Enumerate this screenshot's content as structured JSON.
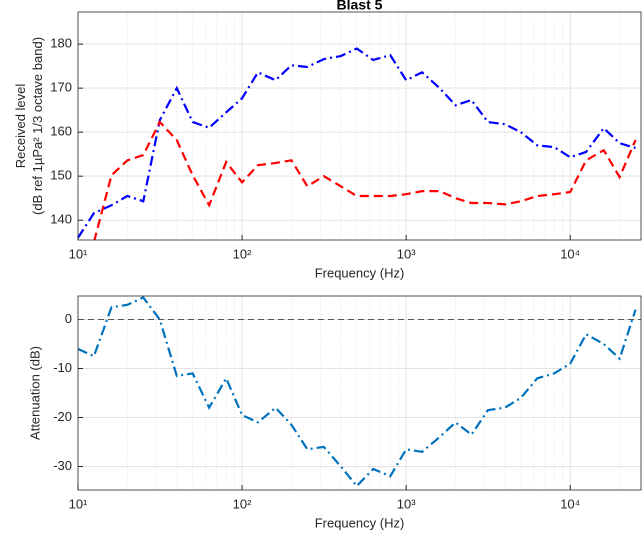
{
  "chart_data": [
    {
      "type": "line",
      "title": "Blast 5",
      "ylabel": [
        "Received level",
        "(dB ref 1µPa² 1/3 octave band)"
      ],
      "xlabel": "Frequency (Hz)",
      "xscale": "log",
      "grid": true,
      "minor_grid": true,
      "xlim": [
        10,
        27000
      ],
      "ylim": [
        135.5,
        187.3
      ],
      "xticks": [
        {
          "value": 10,
          "label": "10¹"
        },
        {
          "value": 100,
          "label": "10²"
        },
        {
          "value": 1000,
          "label": "10³"
        },
        {
          "value": 10000,
          "label": "10⁴"
        }
      ],
      "yticks": [
        140,
        150,
        160,
        170,
        180
      ],
      "x": [
        10,
        12.5,
        16,
        20,
        25,
        31.5,
        40,
        50,
        63,
        80,
        100,
        125,
        160,
        200,
        250,
        315,
        400,
        500,
        630,
        800,
        1000,
        1250,
        1600,
        2000,
        2500,
        3150,
        4000,
        5000,
        6300,
        8000,
        10000,
        12500,
        16000,
        20000,
        25000
      ],
      "series": [
        {
          "color": "#0000ff",
          "linestyle": "dashdot",
          "values": [
            136,
            141.6,
            143.4,
            145.5,
            144.3,
            162.7,
            170,
            162.3,
            161,
            164.5,
            167.7,
            173.6,
            171.8,
            175.2,
            174.8,
            176.6,
            177.3,
            179,
            176.4,
            177.5,
            171.8,
            173.6,
            170,
            166.1,
            167.3,
            162.3,
            161.8,
            160,
            157,
            156.6,
            154.3,
            155.5,
            160.9,
            157.5,
            156.4
          ]
        },
        {
          "color": "#ff0000",
          "linestyle": "dashed",
          "values": [
            130,
            135,
            150.2,
            153.6,
            154.8,
            162.3,
            158.2,
            150.2,
            143.4,
            153.2,
            148.6,
            152.5,
            153,
            153.6,
            147.7,
            150,
            147.7,
            145.5,
            145.5,
            145.5,
            145.9,
            146.6,
            146.6,
            145,
            143.9,
            143.9,
            143.6,
            144.3,
            145.5,
            145.9,
            146.4,
            153.6,
            155.9,
            149.8,
            158.2
          ]
        }
      ]
    },
    {
      "type": "line",
      "ylabel": [
        "Attenuation (dB)"
      ],
      "xlabel": "Frequency (Hz)",
      "xscale": "log",
      "grid": true,
      "minor_grid": true,
      "xlim": [
        10,
        27000
      ],
      "ylim": [
        -34.8,
        4.8
      ],
      "xticks": [
        {
          "value": 10,
          "label": "10¹"
        },
        {
          "value": 100,
          "label": "10²"
        },
        {
          "value": 1000,
          "label": "10³"
        },
        {
          "value": 10000,
          "label": "10⁴"
        }
      ],
      "yticks": [
        -30,
        -20,
        -10,
        0
      ],
      "hline": 0,
      "x": [
        10,
        12.5,
        16,
        20,
        25,
        31.5,
        40,
        50,
        63,
        80,
        100,
        125,
        160,
        200,
        250,
        315,
        400,
        500,
        630,
        800,
        1000,
        1250,
        1600,
        2000,
        2500,
        3150,
        4000,
        5000,
        6300,
        8000,
        10000,
        12500,
        16000,
        20000,
        25000
      ],
      "series": [
        {
          "color": "#0072bd",
          "linestyle": "dashdot",
          "values": [
            -6,
            -7.5,
            2.5,
            3,
            4.5,
            0,
            -11.5,
            -11,
            -18,
            -12,
            -19.5,
            -21,
            -18,
            -21.5,
            -26.5,
            -26,
            -30,
            -34,
            -30.5,
            -32,
            -26.5,
            -27,
            -24,
            -21,
            -23.5,
            -18.5,
            -18,
            -16,
            -12,
            -11,
            -9,
            -3,
            -5,
            -8,
            2
          ]
        }
      ]
    }
  ]
}
